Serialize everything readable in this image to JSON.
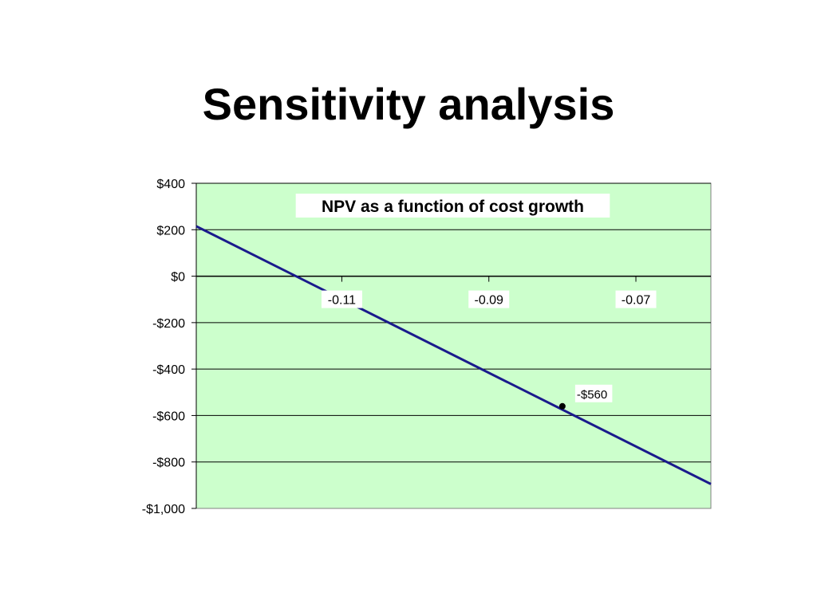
{
  "slide": {
    "title": "Sensitivity analysis"
  },
  "chart_data": {
    "type": "line",
    "title": "NPV as a function of cost growth",
    "xlabel": "",
    "ylabel": "",
    "xlim": [
      -0.1298,
      -0.0598
    ],
    "ylim": [
      -1000,
      400
    ],
    "x_ticks": [
      -0.11,
      -0.09,
      -0.07
    ],
    "x_tick_labels": [
      "-0.11",
      "-0.09",
      "-0.07"
    ],
    "y_ticks": [
      400,
      200,
      0,
      -200,
      -400,
      -600,
      -800,
      -1000
    ],
    "y_tick_labels": [
      "$400",
      "$200",
      "$0",
      "-$200",
      "-$400",
      "-$600",
      "-$800",
      "-$1,000"
    ],
    "grid": true,
    "legend": "none",
    "series": [
      {
        "x": [
          -0.1298,
          -0.0598
        ],
        "y": [
          215,
          -895
        ]
      }
    ],
    "highlight_point": {
      "x": -0.08,
      "y": -560,
      "label": "-$560"
    },
    "colors": {
      "plot_background": "#ccffcc",
      "line": "#1a1a8c",
      "grid": "#000000"
    }
  }
}
